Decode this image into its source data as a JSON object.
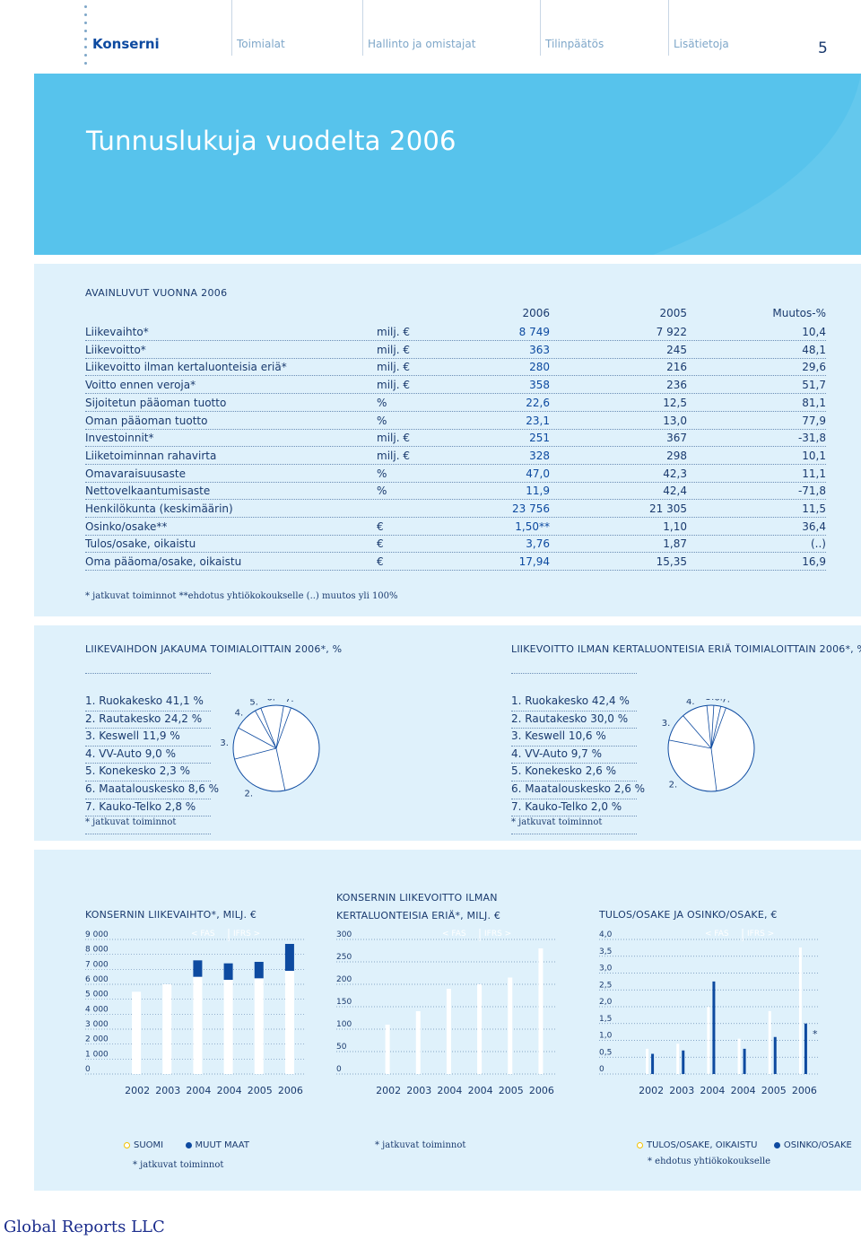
{
  "nav": {
    "items": [
      {
        "label": "Konserni",
        "active": true
      },
      {
        "label": "Toimialat"
      },
      {
        "label": "Hallinto ja omistajat"
      },
      {
        "label": "Tilinpäätös"
      },
      {
        "label": "Lisätietoja"
      }
    ],
    "page_number": "5"
  },
  "hero": {
    "title": "Tunnuslukuja vuodelta 2006"
  },
  "key_figures": {
    "title": "AVAINLUVUT VUONNA 2006",
    "headers": {
      "y2006": "2006",
      "y2005": "2005",
      "change": "Muutos-%"
    },
    "rows": [
      {
        "label": "Liikevaihto*",
        "unit": "milj. €",
        "v2006": "8 749",
        "v2005": "7 922",
        "change": "10,4"
      },
      {
        "label": "Liikevoitto*",
        "unit": "milj. €",
        "v2006": "363",
        "v2005": "245",
        "change": "48,1"
      },
      {
        "label": "Liikevoitto ilman kertaluonteisia eriä*",
        "unit": "milj. €",
        "v2006": "280",
        "v2005": "216",
        "change": "29,6"
      },
      {
        "label": "Voitto ennen veroja*",
        "unit": "milj. €",
        "v2006": "358",
        "v2005": "236",
        "change": "51,7"
      },
      {
        "label": "Sijoitetun pääoman tuotto",
        "unit": "%",
        "v2006": "22,6",
        "v2005": "12,5",
        "change": "81,1"
      },
      {
        "label": "Oman pääoman tuotto",
        "unit": "%",
        "v2006": "23,1",
        "v2005": "13,0",
        "change": "77,9"
      },
      {
        "label": "Investoinnit*",
        "unit": "milj. €",
        "v2006": "251",
        "v2005": "367",
        "change": "-31,8"
      },
      {
        "label": "Liiketoiminnan rahavirta",
        "unit": "milj. €",
        "v2006": "328",
        "v2005": "298",
        "change": "10,1"
      },
      {
        "label": "Omavaraisuusaste",
        "unit": "%",
        "v2006": "47,0",
        "v2005": "42,3",
        "change": "11,1"
      },
      {
        "label": "Nettovelkaantumisaste",
        "unit": "%",
        "v2006": "11,9",
        "v2005": "42,4",
        "change": "-71,8"
      },
      {
        "label": "Henkilökunta (keskimäärin)",
        "unit": "",
        "v2006": "23 756",
        "v2005": "21 305",
        "change": "11,5"
      },
      {
        "label": "Osinko/osake**",
        "unit": "€",
        "v2006": "1,50**",
        "v2005": "1,10",
        "change": "36,4"
      },
      {
        "label": "Tulos/osake, oikaistu",
        "unit": "€",
        "v2006": "3,76",
        "v2005": "1,87",
        "change": "(..)"
      },
      {
        "label": "Oma pääoma/osake, oikaistu",
        "unit": "€",
        "v2006": "17,94",
        "v2005": "15,35",
        "change": "16,9"
      }
    ],
    "footnote": "* jatkuvat toiminnot     **ehdotus yhtiökokoukselle     (..) muutos yli 100%"
  },
  "pies": [
    {
      "title": "LIIKEVAIHDON JAKAUMA TOIMIALOITTAIN 2006*, %",
      "items": [
        "1. Ruokakesko 41,1 %",
        "2. Rautakesko 24,2 %",
        "3. Keswell 11,9 %",
        "4. VV-Auto 9,0 %",
        "5. Konekesko 2,3 %",
        "6. Maatalouskesko 8,6 %",
        "7. Kauko-Telko 2,8 %"
      ],
      "footnote": "* jatkuvat toiminnot",
      "slice_labels": [
        "1.",
        "2.",
        "3.",
        "4.",
        "5.",
        "6.",
        "7."
      ]
    },
    {
      "title": "LIIKEVOITTO ILMAN KERTALUONTEISIA ERIÄ TOIMIALOITTAIN 2006*, %",
      "items": [
        "1. Ruokakesko 42,4 %",
        "2. Rautakesko 30,0 %",
        "3. Keswell 10,6 %",
        "4. VV-Auto 9,7 %",
        "5. Konekesko 2,6 %",
        "6. Maatalouskesko 2,6 %",
        "7. Kauko-Telko 2,0 %"
      ],
      "footnote": "* jatkuvat toiminnot",
      "slice_labels": [
        "1.",
        "2.",
        "3.",
        "4.",
        "5.",
        "6.",
        "7."
      ]
    }
  ],
  "chart_data": [
    {
      "type": "pie",
      "title": "LIIKEVAIHDON JAKAUMA TOIMIALOITTAIN 2006*, %",
      "labels": [
        "Ruokakesko",
        "Rautakesko",
        "Keswell",
        "VV-Auto",
        "Konekesko",
        "Maatalouskesko",
        "Kauko-Telko"
      ],
      "values": [
        41.1,
        24.2,
        11.9,
        9.0,
        2.3,
        8.6,
        2.8
      ]
    },
    {
      "type": "pie",
      "title": "LIIKEVOITTO ILMAN KERTALUONTEISIA ERIÄ TOIMIALOITTAIN 2006*, %",
      "labels": [
        "Ruokakesko",
        "Rautakesko",
        "Keswell",
        "VV-Auto",
        "Konekesko",
        "Maatalouskesko",
        "Kauko-Telko"
      ],
      "values": [
        42.4,
        30.0,
        10.6,
        9.7,
        2.6,
        2.6,
        2.0
      ]
    },
    {
      "type": "bar",
      "title": "KONSERNIN LIIKEVAIHTO*, MILJ. €",
      "categories": [
        "2002",
        "2003",
        "2004",
        "2004",
        "2005",
        "2006"
      ],
      "series": [
        {
          "name": "SUOMI",
          "values": [
            5500,
            6000,
            6500,
            6300,
            6400,
            6900
          ]
        },
        {
          "name": "MUUT MAAT",
          "values": [
            0,
            0,
            1100,
            1100,
            1100,
            1800
          ]
        }
      ],
      "yticks": [
        "0",
        "1 000",
        "2 000",
        "3 000",
        "4 000",
        "5 000",
        "6 000",
        "7 000",
        "8 000",
        "9 000"
      ],
      "ylim": [
        0,
        9000
      ],
      "annotations": [
        "< FAS",
        "IFRS >"
      ],
      "footnote": "* jatkuvat toiminnot"
    },
    {
      "type": "bar",
      "title": "KONSERNIN LIIKEVOITTO ILMAN KERTALUONTEISIA ERIÄ*, MILJ. €",
      "categories": [
        "2002",
        "2003",
        "2004",
        "2004",
        "2005",
        "2006"
      ],
      "series": [
        {
          "values": [
            110,
            140,
            190,
            200,
            215,
            280
          ]
        }
      ],
      "yticks": [
        "0",
        "50",
        "100",
        "150",
        "200",
        "250",
        "300"
      ],
      "ylim": [
        0,
        300
      ],
      "annotations": [
        "< FAS",
        "IFRS >"
      ],
      "footnote": "* jatkuvat toiminnot"
    },
    {
      "type": "bar",
      "title": "TULOS/OSAKE JA OSINKO/OSAKE, €",
      "categories": [
        "2002",
        "2003",
        "2004",
        "2004",
        "2005",
        "2006"
      ],
      "series": [
        {
          "name": "TULOS/OSAKE, OIKAISTU",
          "values": [
            0.75,
            0.9,
            2.0,
            1.05,
            1.87,
            3.76
          ]
        },
        {
          "name": "OSINKO/OSAKE",
          "values": [
            0.6,
            0.7,
            2.75,
            0.75,
            1.1,
            1.5
          ]
        }
      ],
      "yticks": [
        "0",
        "0,5",
        "1,0",
        "1,5",
        "2,0",
        "2,5",
        "3,0",
        "3,5",
        "4,0"
      ],
      "ylim": [
        0,
        4.0
      ],
      "annotations": [
        "< FAS",
        "IFRS >",
        "*"
      ],
      "footnote": "* ehdotus yhtiökokoukselle"
    }
  ],
  "colors": {
    "accent": "#57c3ec",
    "dark_blue": "#0d4aa0",
    "panel": "#dff1fb"
  },
  "brand": "Global Reports LLC"
}
